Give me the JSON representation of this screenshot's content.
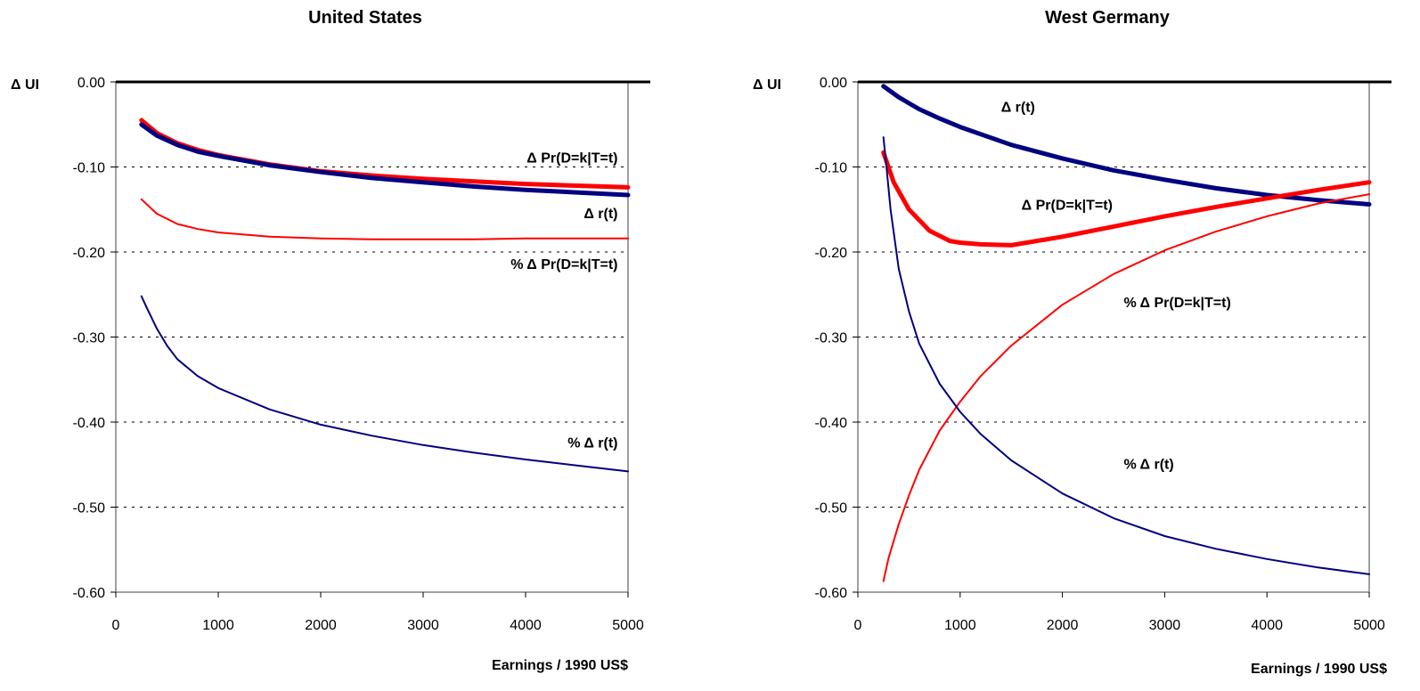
{
  "chart_data": [
    {
      "type": "line",
      "title": "United States",
      "xlabel": "Earnings / 1990 US$",
      "ylabel": "Δ UI",
      "xlim": [
        0,
        5000
      ],
      "ylim": [
        -0.6,
        0.0
      ],
      "xticks": [
        "0",
        "1000",
        "2000",
        "3000",
        "4000",
        "5000"
      ],
      "yticks": [
        "0.00",
        "-0.10",
        "-0.20",
        "-0.30",
        "-0.40",
        "-0.50",
        "-0.60"
      ],
      "grid": "dashed horizontal",
      "series": [
        {
          "name": "Δ Pr(D=k|T=t)",
          "color": "#ff0000",
          "width": "thick",
          "x": [
            250,
            400,
            600,
            800,
            1000,
            1500,
            2000,
            2500,
            3000,
            3500,
            4000,
            4500,
            5000
          ],
          "y": [
            -0.045,
            -0.06,
            -0.072,
            -0.08,
            -0.086,
            -0.097,
            -0.105,
            -0.11,
            -0.114,
            -0.117,
            -0.12,
            -0.122,
            -0.124
          ]
        },
        {
          "name": "Δ r(t)",
          "color": "#000080",
          "width": "thick",
          "x": [
            250,
            400,
            600,
            800,
            1000,
            1500,
            2000,
            2500,
            3000,
            3500,
            4000,
            4500,
            5000
          ],
          "y": [
            -0.05,
            -0.063,
            -0.074,
            -0.082,
            -0.087,
            -0.098,
            -0.106,
            -0.113,
            -0.118,
            -0.123,
            -0.127,
            -0.13,
            -0.133
          ]
        },
        {
          "name": "% Δ Pr(D=k|T=t)",
          "color": "#ff0000",
          "width": "thin",
          "x": [
            250,
            400,
            600,
            800,
            1000,
            1500,
            2000,
            2500,
            3000,
            3500,
            4000,
            4500,
            5000
          ],
          "y": [
            -0.138,
            -0.155,
            -0.167,
            -0.173,
            -0.177,
            -0.182,
            -0.184,
            -0.185,
            -0.185,
            -0.185,
            -0.184,
            -0.184,
            -0.184
          ]
        },
        {
          "name": "% Δ r(t)",
          "color": "#000080",
          "width": "thin",
          "x": [
            250,
            300,
            400,
            500,
            600,
            800,
            1000,
            1500,
            2000,
            2500,
            3000,
            3500,
            4000,
            4500,
            5000
          ],
          "y": [
            -0.252,
            -0.265,
            -0.29,
            -0.31,
            -0.326,
            -0.346,
            -0.36,
            -0.385,
            -0.403,
            -0.416,
            -0.427,
            -0.436,
            -0.444,
            -0.451,
            -0.458
          ]
        }
      ],
      "annotations": [
        {
          "text": "Δ Pr(D=k|T=t)",
          "x": 4900,
          "y": -0.095
        },
        {
          "text": "Δ r(t)",
          "x": 4900,
          "y": -0.16
        },
        {
          "text": "% Δ Pr(D=k|T=t)",
          "x": 4900,
          "y": -0.22
        },
        {
          "text": "% Δ r(t)",
          "x": 4900,
          "y": -0.43
        }
      ]
    },
    {
      "type": "line",
      "title": "West Germany",
      "xlabel": "Earnings / 1990 US$",
      "ylabel": "Δ UI",
      "xlim": [
        0,
        5000
      ],
      "ylim": [
        -0.6,
        0.0
      ],
      "xticks": [
        "0",
        "1000",
        "2000",
        "3000",
        "4000",
        "5000"
      ],
      "yticks": [
        "0.00",
        "-0.10",
        "-0.20",
        "-0.30",
        "-0.40",
        "-0.50",
        "-0.60"
      ],
      "grid": "dashed horizontal",
      "series": [
        {
          "name": "Δ r(t)",
          "color": "#000080",
          "width": "thick",
          "x": [
            250,
            400,
            600,
            800,
            1000,
            1500,
            2000,
            2500,
            3000,
            3500,
            4000,
            4500,
            5000
          ],
          "y": [
            -0.005,
            -0.018,
            -0.032,
            -0.043,
            -0.053,
            -0.074,
            -0.09,
            -0.104,
            -0.115,
            -0.125,
            -0.133,
            -0.139,
            -0.144
          ]
        },
        {
          "name": "Δ Pr(D=k|T=t)",
          "color": "#ff0000",
          "width": "thick",
          "x": [
            250,
            350,
            500,
            700,
            900,
            1000,
            1200,
            1500,
            2000,
            2500,
            3000,
            3500,
            4000,
            4500,
            5000
          ],
          "y": [
            -0.083,
            -0.118,
            -0.15,
            -0.175,
            -0.187,
            -0.189,
            -0.191,
            -0.192,
            -0.182,
            -0.17,
            -0.158,
            -0.147,
            -0.137,
            -0.127,
            -0.118
          ]
        },
        {
          "name": "% Δ Pr(D=k|T=t)",
          "color": "#ff0000",
          "width": "thin",
          "x": [
            250,
            300,
            400,
            500,
            600,
            800,
            1000,
            1200,
            1500,
            2000,
            2500,
            3000,
            3500,
            4000,
            4500,
            5000
          ],
          "y": [
            -0.587,
            -0.56,
            -0.52,
            -0.486,
            -0.456,
            -0.41,
            -0.376,
            -0.346,
            -0.31,
            -0.262,
            -0.226,
            -0.198,
            -0.176,
            -0.158,
            -0.143,
            -0.132
          ]
        },
        {
          "name": "% Δ r(t)",
          "color": "#000080",
          "width": "thin",
          "x": [
            250,
            280,
            320,
            400,
            500,
            600,
            800,
            1000,
            1200,
            1500,
            2000,
            2500,
            3000,
            3500,
            4000,
            4500,
            5000
          ],
          "y": [
            -0.065,
            -0.1,
            -0.15,
            -0.22,
            -0.27,
            -0.308,
            -0.355,
            -0.388,
            -0.414,
            -0.445,
            -0.484,
            -0.513,
            -0.534,
            -0.549,
            -0.561,
            -0.571,
            -0.579
          ]
        }
      ],
      "annotations": [
        {
          "text": "Δ r(t)",
          "x": 1400,
          "y": -0.035
        },
        {
          "text": "Δ Pr(D=k|T=t)",
          "x": 1600,
          "y": -0.15
        },
        {
          "text": "% Δ Pr(D=k|T=t)",
          "x": 2600,
          "y": -0.265
        },
        {
          "text": "% Δ r(t)",
          "x": 2600,
          "y": -0.455
        }
      ]
    }
  ]
}
